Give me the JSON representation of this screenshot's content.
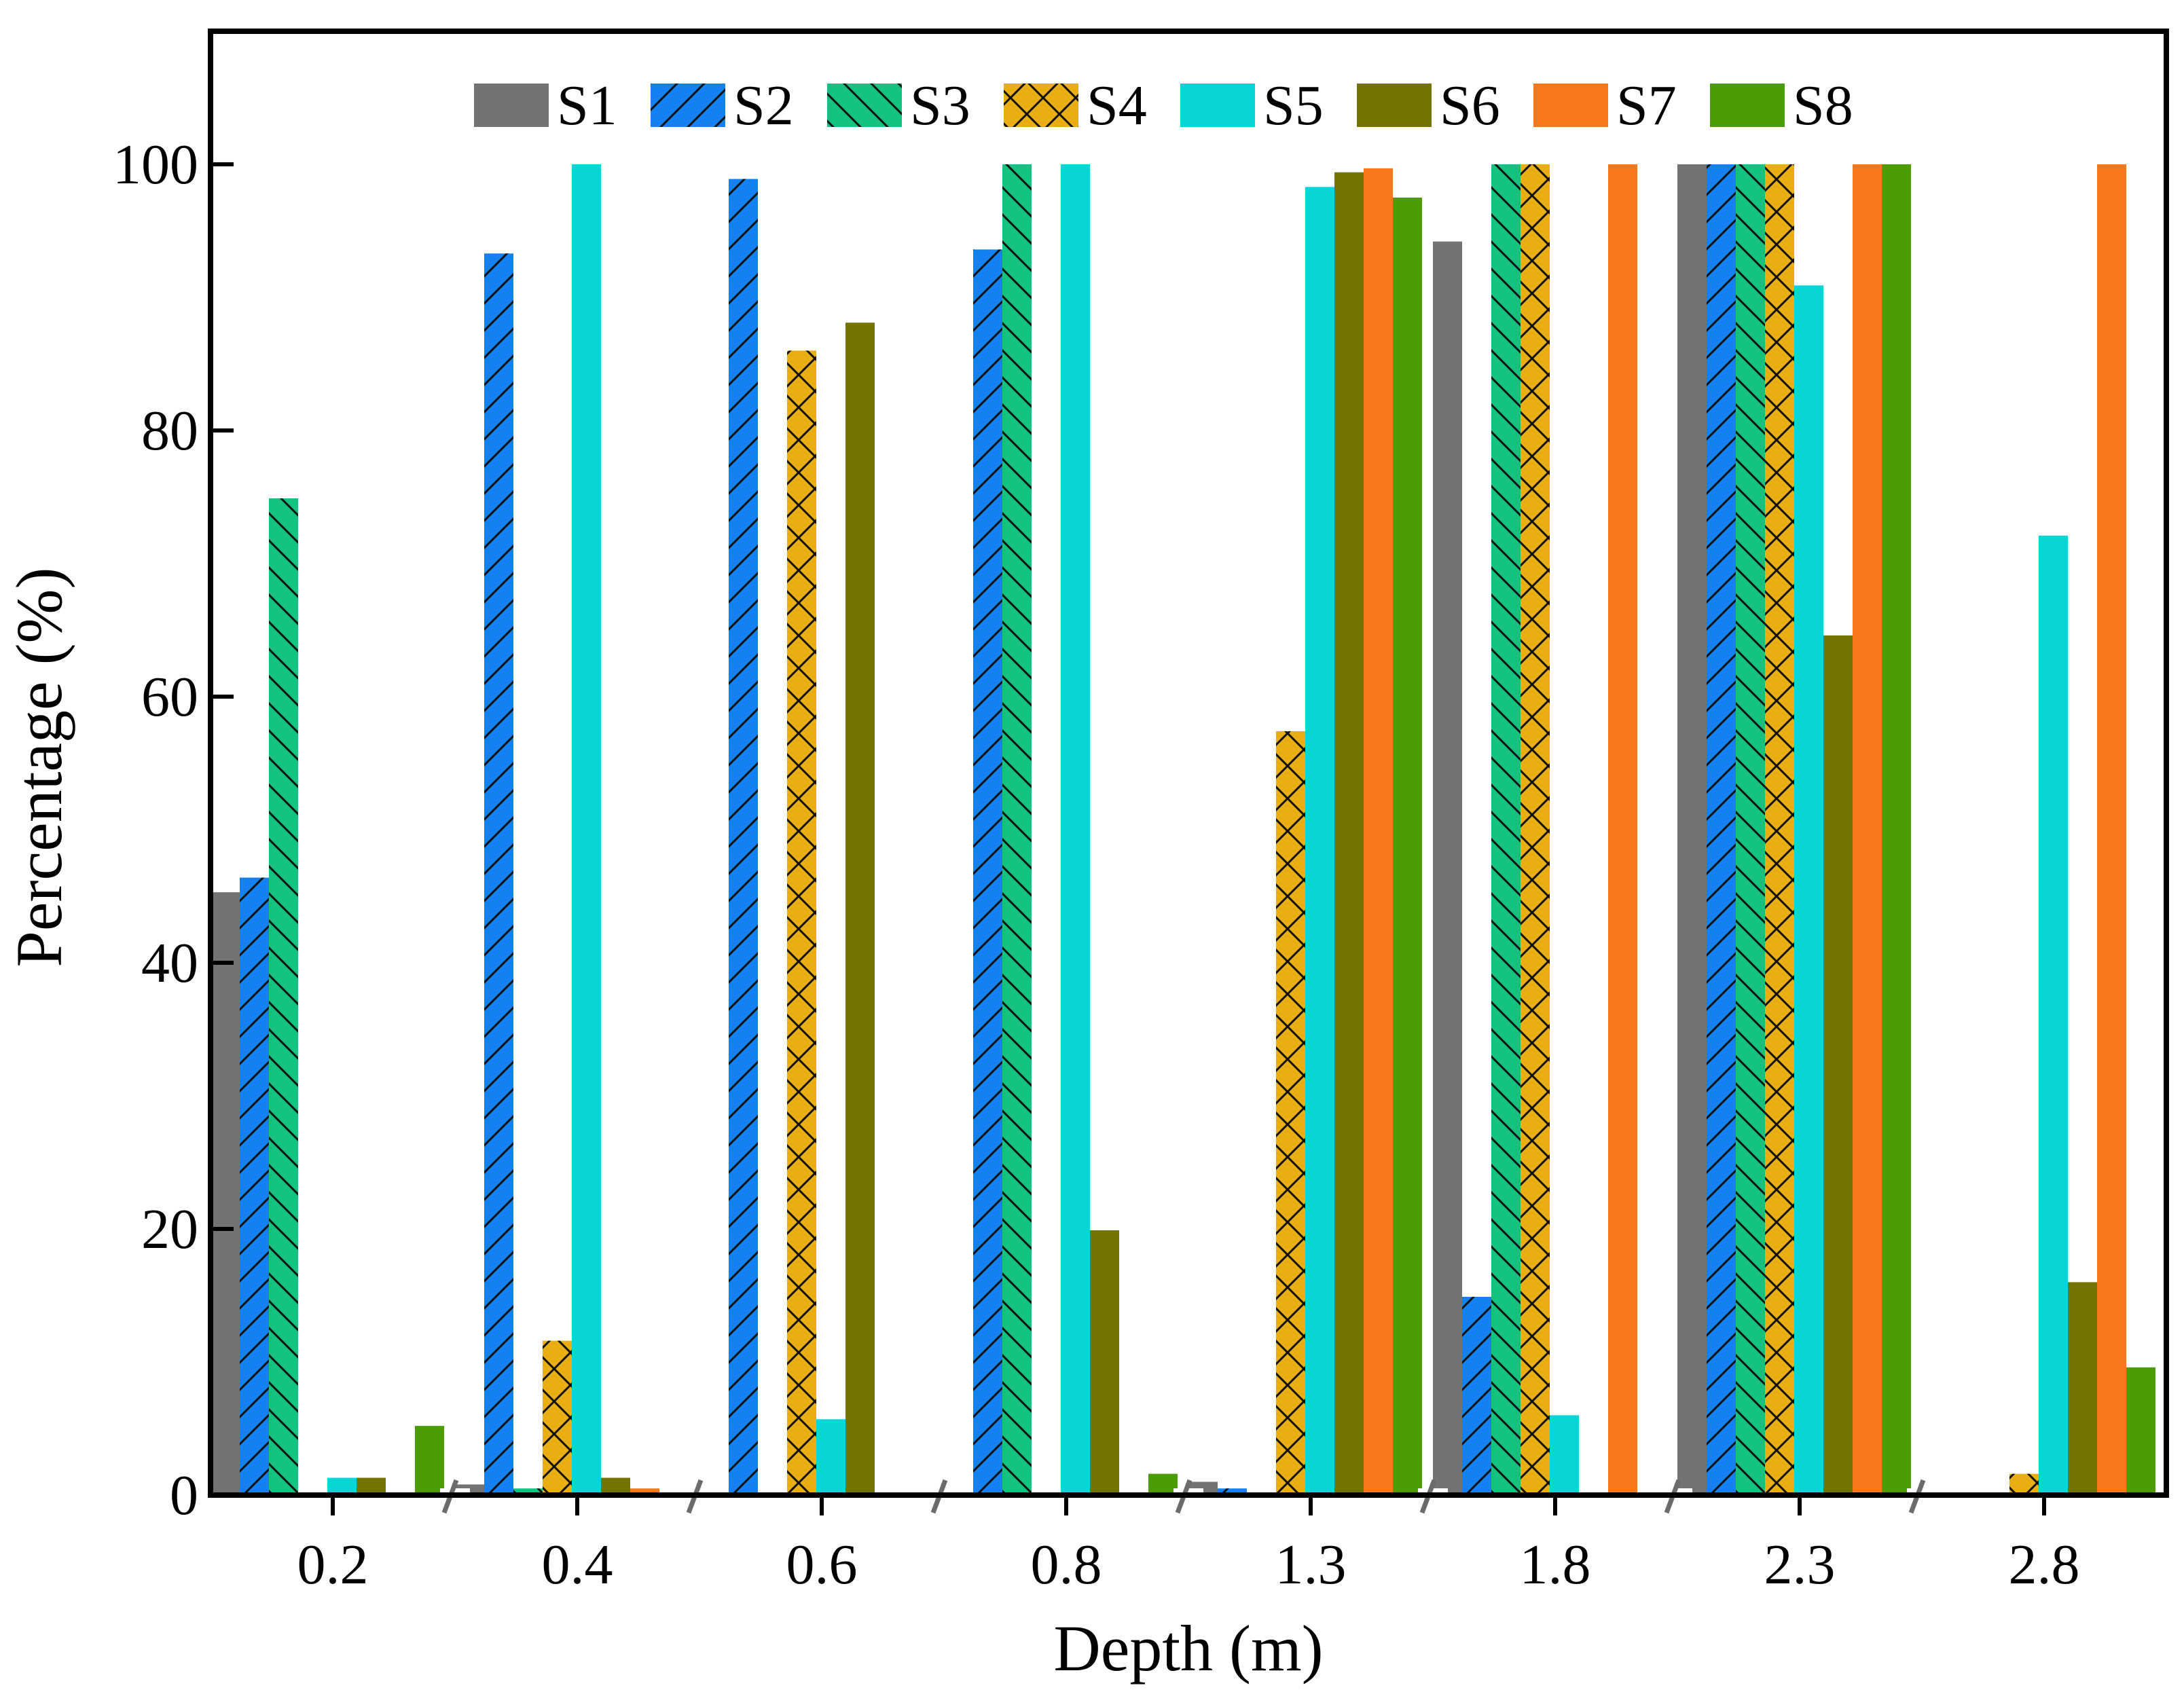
{
  "chart_data": {
    "type": "bar",
    "title": "",
    "xlabel": "Depth (m)",
    "ylabel": "Percentage (%)",
    "ylim": [
      0,
      110
    ],
    "yticks": [
      "0",
      "20",
      "40",
      "60",
      "80",
      "100"
    ],
    "categories": [
      "0.2",
      "0.4",
      "0.6",
      "0.8",
      "1.3",
      "1.8",
      "2.3",
      "2.8"
    ],
    "legend_position": "top",
    "series": [
      {
        "name": "S1",
        "color": "#737373",
        "hatch": "none",
        "values": [
          45.3,
          0.8,
          0,
          0,
          1.0,
          94.2,
          100,
          0
        ]
      },
      {
        "name": "S2",
        "color": "#1580f0",
        "hatch": "forward",
        "values": [
          46.4,
          93.3,
          98.9,
          93.6,
          0.5,
          14.9,
          100,
          0
        ]
      },
      {
        "name": "S3",
        "color": "#14c27f",
        "hatch": "backward",
        "values": [
          74.9,
          0.5,
          0,
          100,
          0,
          100,
          100,
          0
        ]
      },
      {
        "name": "S4",
        "color": "#e8ae12",
        "hatch": "cross",
        "values": [
          0,
          11.6,
          86.0,
          0,
          57.4,
          100,
          100,
          1.6
        ]
      },
      {
        "name": "S5",
        "color": "#08d5d6",
        "hatch": "none",
        "values": [
          1.3,
          100,
          5.7,
          100,
          98.3,
          6.0,
          90.9,
          72.1
        ]
      },
      {
        "name": "S6",
        "color": "#737300",
        "hatch": "none",
        "values": [
          1.3,
          1.3,
          88.1,
          19.9,
          99.4,
          0,
          64.6,
          16.0
        ]
      },
      {
        "name": "S7",
        "color": "#f8781a",
        "hatch": "none",
        "values": [
          0,
          0.5,
          0,
          0,
          99.7,
          100,
          100,
          100
        ]
      },
      {
        "name": "S8",
        "color": "#4b9c06",
        "hatch": "none",
        "values": [
          5.2,
          0,
          0,
          1.6,
          97.5,
          0,
          100,
          9.6
        ]
      }
    ]
  }
}
